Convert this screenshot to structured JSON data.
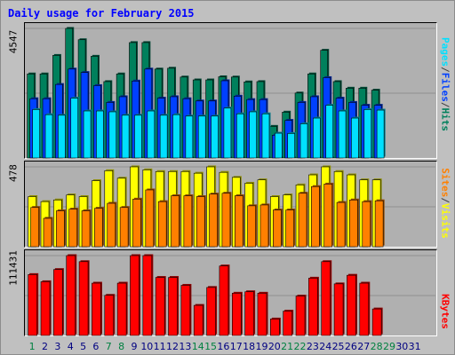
{
  "title": "Daily usage for February 2015",
  "colors": {
    "hits": "#00805c",
    "files": "#0040ff",
    "pages": "#00e0ff",
    "visits": "#ffff00",
    "sites": "#ff8000",
    "kbytes": "#ff0000",
    "weekday_label": "#000080",
    "weekend_label": "#008040",
    "title": "#0000ff"
  },
  "chart_data": [
    {
      "type": "bar",
      "name": "hits-files-pages",
      "max_label": "4547",
      "ylim": [
        0,
        4547
      ],
      "legend": [
        {
          "text": "Pages",
          "color": "#00e0ff"
        },
        {
          "text": "/",
          "color": "#404040"
        },
        {
          "text": "Files",
          "color": "#0040ff"
        },
        {
          "text": "/",
          "color": "#404040"
        },
        {
          "text": "Hits",
          "color": "#00805c"
        }
      ],
      "categories": [
        "1",
        "2",
        "3",
        "4",
        "5",
        "6",
        "7",
        "8",
        "9",
        "10",
        "11",
        "12",
        "13",
        "14",
        "15",
        "16",
        "17",
        "18",
        "19",
        "20",
        "21",
        "22",
        "23",
        "24",
        "25",
        "26",
        "27",
        "28",
        "29",
        "30",
        "31"
      ],
      "series": [
        {
          "name": "Hits",
          "values": [
            2950,
            2950,
            3600,
            4547,
            4150,
            3570,
            2680,
            2950,
            4050,
            4050,
            3120,
            3150,
            2840,
            2740,
            2740,
            2850,
            2840,
            2670,
            2680,
            1110,
            1610,
            2280,
            2950,
            3780,
            2680,
            2450,
            2450,
            2380,
            null,
            null,
            null
          ]
        },
        {
          "name": "Files",
          "values": [
            2080,
            2080,
            2580,
            3120,
            3000,
            2540,
            1950,
            2150,
            2700,
            3120,
            2100,
            2150,
            2080,
            2000,
            2000,
            2710,
            2170,
            2050,
            2050,
            800,
            1320,
            1950,
            2150,
            2820,
            2100,
            1950,
            1850,
            1850,
            null,
            null,
            null
          ]
        },
        {
          "name": "Pages",
          "values": [
            1700,
            1520,
            1500,
            2100,
            1650,
            1650,
            1620,
            1500,
            1500,
            1650,
            1500,
            1520,
            1470,
            1470,
            1470,
            1750,
            1550,
            1620,
            1550,
            870,
            860,
            1200,
            1400,
            1850,
            1650,
            1400,
            1700,
            1680,
            null,
            null,
            null
          ]
        }
      ]
    },
    {
      "type": "bar",
      "name": "visits-sites",
      "max_label": "478",
      "ylim": [
        0,
        478
      ],
      "legend": [
        {
          "text": "Sites",
          "color": "#ff8000"
        },
        {
          "text": "/",
          "color": "#404040"
        },
        {
          "text": "Visits",
          "color": "#ffff00"
        }
      ],
      "categories": [
        "1",
        "2",
        "3",
        "4",
        "5",
        "6",
        "7",
        "8",
        "9",
        "10",
        "11",
        "12",
        "13",
        "14",
        "15",
        "16",
        "17",
        "18",
        "19",
        "20",
        "21",
        "22",
        "23",
        "24",
        "25",
        "26",
        "27",
        "28",
        "29",
        "30",
        "31"
      ],
      "series": [
        {
          "name": "Visits",
          "values": [
            300,
            270,
            280,
            310,
            300,
            395,
            455,
            410,
            478,
            460,
            450,
            450,
            450,
            440,
            478,
            445,
            415,
            380,
            400,
            300,
            310,
            370,
            430,
            478,
            450,
            430,
            400,
            400,
            null,
            null,
            null
          ]
        },
        {
          "name": "Sites",
          "values": [
            235,
            170,
            215,
            225,
            215,
            230,
            260,
            235,
            285,
            340,
            270,
            305,
            305,
            300,
            315,
            320,
            305,
            245,
            250,
            220,
            220,
            320,
            360,
            375,
            265,
            280,
            270,
            275,
            null,
            null,
            null
          ]
        }
      ]
    },
    {
      "type": "bar",
      "name": "kbytes",
      "max_label": "111431",
      "ylim": [
        0,
        111431
      ],
      "legend": [
        {
          "text": "KBytes",
          "color": "#ff0000"
        }
      ],
      "categories": [
        "1",
        "2",
        "3",
        "4",
        "5",
        "6",
        "7",
        "8",
        "9",
        "10",
        "11",
        "12",
        "13",
        "14",
        "15",
        "16",
        "17",
        "18",
        "19",
        "20",
        "21",
        "22",
        "23",
        "24",
        "25",
        "26",
        "27",
        "28",
        "29",
        "30",
        "31"
      ],
      "series": [
        {
          "name": "KBytes",
          "values": [
            85000,
            75000,
            92000,
            111431,
            103000,
            73000,
            56000,
            73000,
            111431,
            111431,
            81000,
            81000,
            70000,
            42000,
            67000,
            97000,
            59000,
            61000,
            59000,
            23000,
            34000,
            55000,
            80000,
            103000,
            72000,
            84000,
            73000,
            37000,
            null,
            null,
            null
          ]
        }
      ]
    }
  ]
}
